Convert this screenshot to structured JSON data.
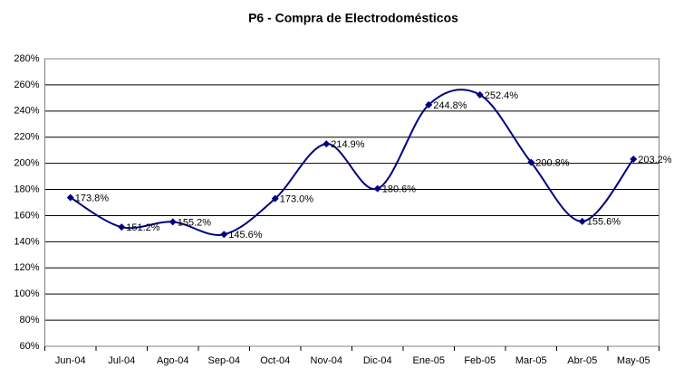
{
  "chart_data": {
    "type": "line",
    "title": "P6 - Compra de Electrodomésticos",
    "categories": [
      "Jun-04",
      "Jul-04",
      "Ago-04",
      "Sep-04",
      "Oct-04",
      "Nov-04",
      "Dic-04",
      "Ene-05",
      "Feb-05",
      "Mar-05",
      "Abr-05",
      "May-05"
    ],
    "values": [
      173.8,
      151.2,
      155.2,
      145.6,
      173.0,
      214.9,
      180.6,
      244.8,
      252.4,
      200.8,
      155.6,
      203.2
    ],
    "value_labels": [
      "173.8%",
      "151.2%",
      "155.2%",
      "145.6%",
      "173.0%",
      "214.9%",
      "180.6%",
      "244.8%",
      "252.4%",
      "200.8%",
      "155.6%",
      "203.2%"
    ],
    "color": "#000080",
    "smooth": true,
    "grid": true,
    "ylim": [
      60,
      280
    ],
    "yticks": [
      {
        "value": 60,
        "label": "60%"
      },
      {
        "value": 80,
        "label": "80%"
      },
      {
        "value": 100,
        "label": "100%"
      },
      {
        "value": 120,
        "label": "120%"
      },
      {
        "value": 140,
        "label": "140%"
      },
      {
        "value": 160,
        "label": "160%"
      },
      {
        "value": 180,
        "label": "180%"
      },
      {
        "value": 200,
        "label": "200%"
      },
      {
        "value": 220,
        "label": "220%"
      },
      {
        "value": 240,
        "label": "240%"
      },
      {
        "value": 260,
        "label": "260%"
      },
      {
        "value": 280,
        "label": "280%"
      }
    ]
  }
}
